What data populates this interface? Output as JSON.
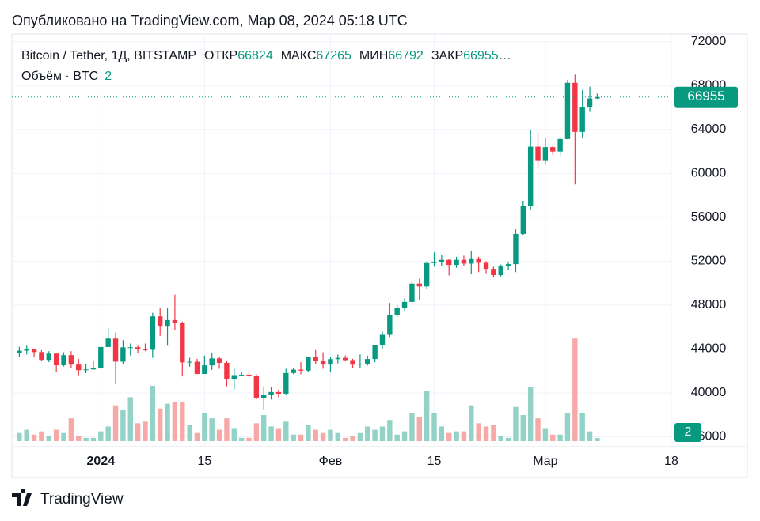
{
  "header": {
    "published": "Опубликовано на TradingView.com, Мар 08, 2024 05:18 UTC"
  },
  "legend": {
    "symbol": "Bitcoin / Tether, 1Д, BITSTAMP",
    "open_label": "ОТКР",
    "open": 66824,
    "high_label": "МАКС",
    "high": 67265,
    "low_label": "МИН",
    "low": 66792,
    "close_label": "ЗАКР",
    "close": 66955,
    "overflow": "…",
    "volume_label": "Объём · BTC"
  },
  "footer": {
    "brand": "TradingView"
  },
  "chart_data": {
    "type": "candlestick",
    "x": [
      "2023-12-21",
      "2023-12-22",
      "2023-12-23",
      "2023-12-24",
      "2023-12-25",
      "2023-12-26",
      "2023-12-27",
      "2023-12-28",
      "2023-12-29",
      "2023-12-30",
      "2023-12-31",
      "2024-01-01",
      "2024-01-02",
      "2024-01-03",
      "2024-01-04",
      "2024-01-05",
      "2024-01-06",
      "2024-01-07",
      "2024-01-08",
      "2024-01-09",
      "2024-01-10",
      "2024-01-11",
      "2024-01-12",
      "2024-01-13",
      "2024-01-14",
      "2024-01-15",
      "2024-01-16",
      "2024-01-17",
      "2024-01-18",
      "2024-01-19",
      "2024-01-20",
      "2024-01-21",
      "2024-01-22",
      "2024-01-23",
      "2024-01-24",
      "2024-01-25",
      "2024-01-26",
      "2024-01-27",
      "2024-01-28",
      "2024-01-29",
      "2024-01-30",
      "2024-01-31",
      "2024-02-01",
      "2024-02-02",
      "2024-02-03",
      "2024-02-04",
      "2024-02-05",
      "2024-02-06",
      "2024-02-07",
      "2024-02-08",
      "2024-02-09",
      "2024-02-10",
      "2024-02-11",
      "2024-02-12",
      "2024-02-13",
      "2024-02-14",
      "2024-02-15",
      "2024-02-16",
      "2024-02-17",
      "2024-02-18",
      "2024-02-19",
      "2024-02-20",
      "2024-02-21",
      "2024-02-22",
      "2024-02-23",
      "2024-02-24",
      "2024-02-25",
      "2024-02-26",
      "2024-02-27",
      "2024-02-28",
      "2024-02-29",
      "2024-03-01",
      "2024-03-02",
      "2024-03-03",
      "2024-03-04",
      "2024-03-05",
      "2024-03-06",
      "2024-03-07",
      "2024-03-08"
    ],
    "open": [
      43650,
      43850,
      43990,
      43720,
      43010,
      43580,
      42520,
      43440,
      42580,
      42070,
      42140,
      42280,
      44180,
      44950,
      42850,
      44150,
      44160,
      43970,
      43930,
      46970,
      46110,
      46630,
      46340,
      42780,
      42840,
      41730,
      42510,
      43140,
      42740,
      41260,
      41620,
      41660,
      41570,
      39500,
      39850,
      40080,
      39930,
      41810,
      42120,
      42030,
      43300,
      42940,
      42580,
      43080,
      43190,
      42990,
      42580,
      42660,
      43090,
      44340,
      45290,
      47130,
      47750,
      48290,
      49960,
      49700,
      51830,
      51900,
      52120,
      51660,
      52120,
      51780,
      52260,
      51850,
      51300,
      50730,
      51570,
      51730,
      54480,
      57050,
      62430,
      61130,
      62390,
      61990,
      63130,
      68250,
      63780,
      66070,
      66824
    ],
    "high": [
      44200,
      44300,
      43950,
      43900,
      43800,
      43600,
      43700,
      43800,
      43100,
      42600,
      42900,
      44200,
      45900,
      45500,
      44800,
      44500,
      44300,
      44500,
      47300,
      47700,
      47700,
      48950,
      46500,
      43200,
      43100,
      43400,
      43600,
      43300,
      42900,
      42200,
      41900,
      41900,
      41700,
      40600,
      40500,
      40300,
      42200,
      42300,
      42800,
      43300,
      43900,
      43700,
      43300,
      43500,
      43400,
      43100,
      43500,
      43400,
      44400,
      45600,
      48200,
      48000,
      48600,
      50200,
      50400,
      52000,
      52800,
      52600,
      52200,
      52400,
      52500,
      52900,
      52400,
      52000,
      51500,
      51700,
      51900,
      54900,
      57500,
      64000,
      63700,
      63200,
      62500,
      63300,
      68500,
      69000,
      67600,
      67900,
      67265
    ],
    "low": [
      43300,
      43500,
      43300,
      42900,
      42800,
      41900,
      42400,
      42300,
      41600,
      41800,
      42100,
      42200,
      44200,
      40800,
      42600,
      43400,
      43600,
      43800,
      43200,
      45200,
      44300,
      45700,
      41500,
      42400,
      41700,
      41800,
      42100,
      42200,
      40600,
      40300,
      41500,
      41400,
      39400,
      38500,
      39400,
      39600,
      39800,
      41700,
      41700,
      41900,
      42600,
      42200,
      41900,
      42700,
      42900,
      42300,
      42300,
      42500,
      42800,
      44000,
      45100,
      46900,
      47500,
      48200,
      48500,
      49500,
      51500,
      51600,
      50700,
      51400,
      51600,
      50800,
      51000,
      50900,
      50500,
      50600,
      51200,
      51000,
      54400,
      56700,
      60400,
      60800,
      61700,
      61600,
      63100,
      59000,
      63200,
      65600,
      66792
    ],
    "close": [
      43850,
      43990,
      43720,
      43010,
      43580,
      42520,
      43440,
      42580,
      42070,
      42140,
      42280,
      44180,
      44950,
      42850,
      44150,
      44160,
      43970,
      43930,
      46970,
      46110,
      46630,
      46340,
      42780,
      42840,
      41730,
      42510,
      43140,
      42740,
      41260,
      41620,
      41660,
      41570,
      39500,
      39850,
      40080,
      39930,
      41810,
      42120,
      42030,
      43300,
      42940,
      42580,
      43080,
      43190,
      42990,
      42580,
      42660,
      43090,
      44340,
      45290,
      47130,
      47750,
      48290,
      49960,
      49700,
      51830,
      51900,
      52120,
      51660,
      52120,
      51780,
      52260,
      51850,
      51300,
      50730,
      51570,
      51730,
      54480,
      57050,
      62430,
      61130,
      62390,
      61990,
      63130,
      68250,
      63780,
      66070,
      66824,
      66955
    ],
    "volume": [
      5,
      7,
      4,
      6,
      3,
      7,
      5,
      14,
      3,
      2,
      2,
      6,
      9,
      22,
      19,
      27,
      11,
      12,
      34,
      20,
      23,
      24,
      24,
      10,
      5,
      17,
      14,
      7,
      14,
      8,
      2,
      2,
      11,
      16,
      9,
      8,
      12,
      4,
      4,
      10,
      7,
      5,
      7,
      5,
      2,
      3,
      5,
      9,
      7,
      9,
      13,
      4,
      6,
      17,
      15,
      31,
      17,
      9,
      5,
      6,
      6,
      22,
      11,
      9,
      10,
      3,
      2,
      21,
      16,
      33,
      14,
      8,
      4,
      4,
      17,
      63,
      17,
      6,
      2
    ],
    "xlim": [
      "2023-12-20",
      "2024-03-18"
    ],
    "xticks": [
      {
        "value": "2024-01-01",
        "label": "2024"
      },
      {
        "value": "2024-01-15",
        "label": "15"
      },
      {
        "value": "2024-02-01",
        "label": "Фев"
      },
      {
        "value": "2024-02-15",
        "label": "15"
      },
      {
        "value": "2024-03-01",
        "label": "Мар"
      },
      {
        "value": "2024-03-18",
        "label": "18"
      }
    ],
    "ylim": [
      35100,
      72700
    ],
    "yticks": [
      36000,
      40000,
      44000,
      48000,
      52000,
      56000,
      60000,
      64000,
      68000,
      72000
    ],
    "y2lim": [
      0,
      250
    ],
    "grid": true,
    "up_color": "#089981",
    "down_color": "#f23645",
    "volume_up_color": "#92d2c7",
    "volume_down_color": "#f7a9a7"
  }
}
